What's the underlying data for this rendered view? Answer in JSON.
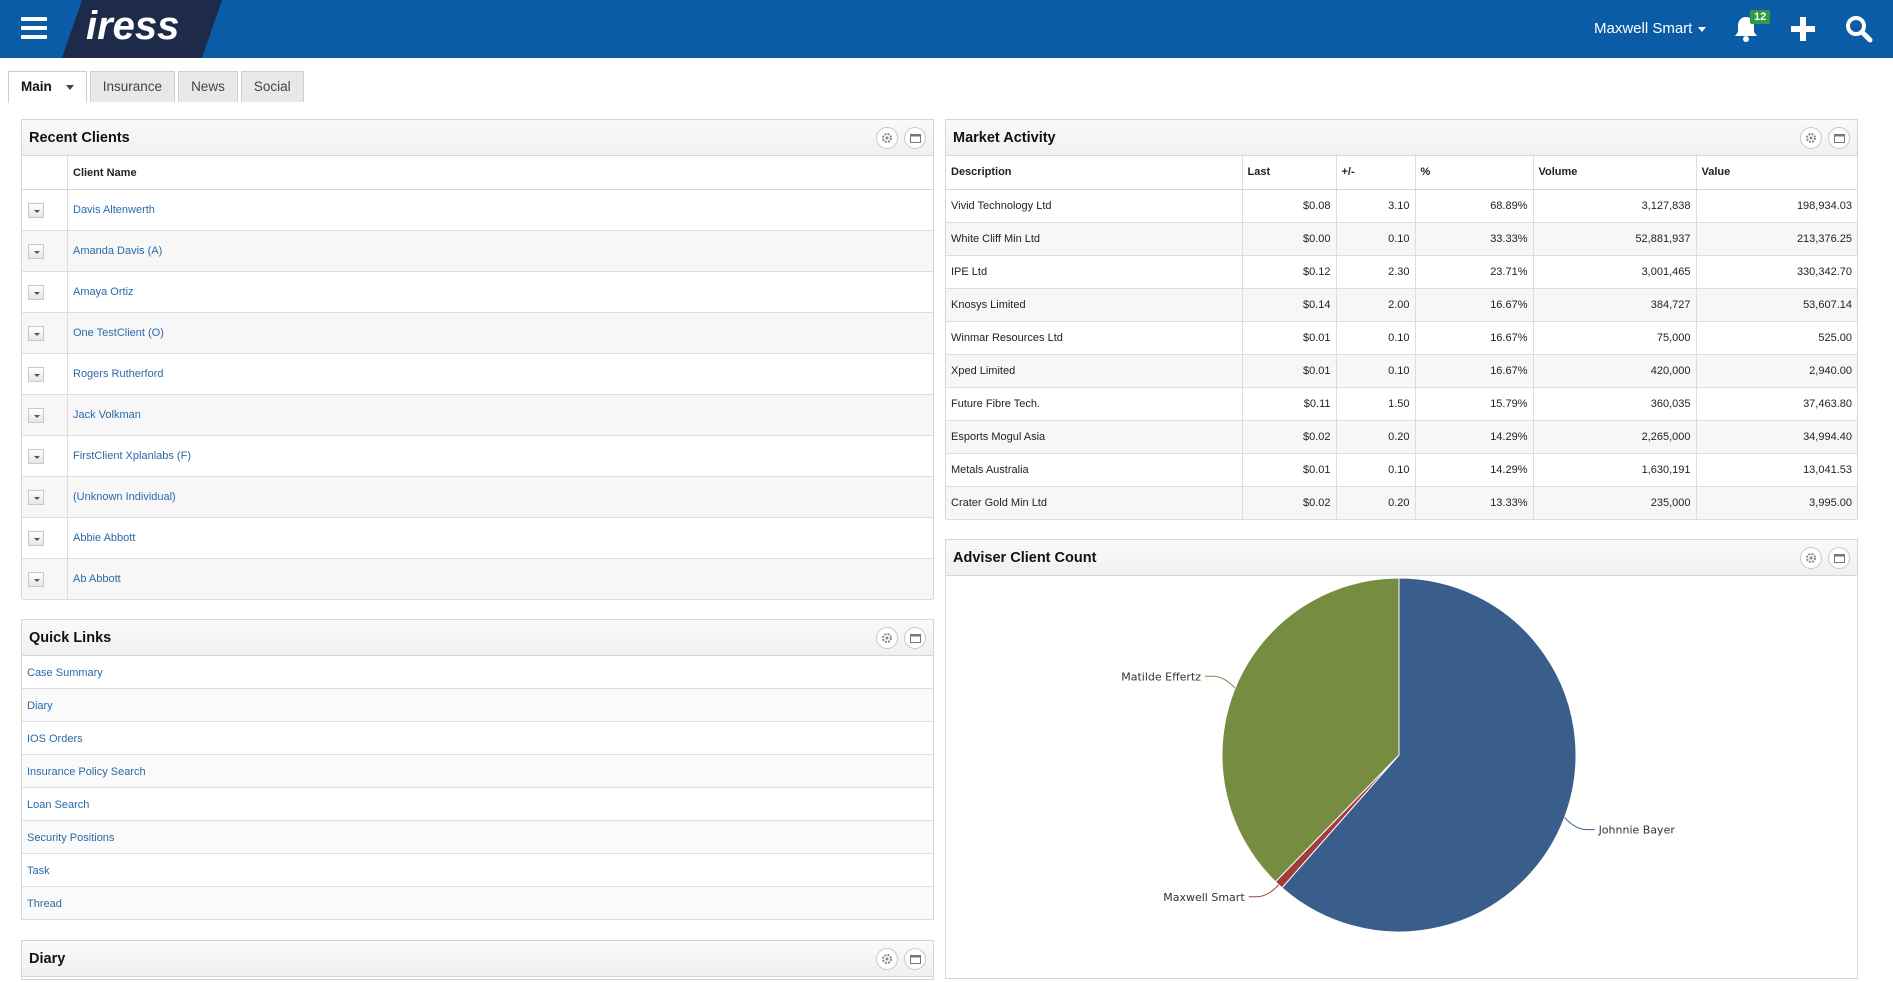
{
  "header": {
    "logo_text": "iress",
    "user_name": "Maxwell Smart",
    "notification_count": "12",
    "colors": {
      "bar": "#0a5ca6",
      "badge": "#2e9c45",
      "logo_bg": "#1d2a4a"
    }
  },
  "tabs": [
    {
      "label": "Main",
      "active": true
    },
    {
      "label": "Insurance"
    },
    {
      "label": "News"
    },
    {
      "label": "Social"
    }
  ],
  "recent_clients": {
    "title": "Recent Clients",
    "column": "Client Name",
    "rows": [
      "Davis Altenwerth",
      "Amanda Davis (A)",
      "Amaya Ortiz",
      "One TestClient (O)",
      "Rogers Rutherford",
      "Jack Volkman",
      "FirstClient Xplanlabs (F)",
      "(Unknown Individual)",
      "Abbie Abbott",
      "Ab Abbott"
    ]
  },
  "quick_links": {
    "title": "Quick Links",
    "items": [
      "Case Summary",
      "Diary",
      "IOS Orders",
      "Insurance Policy Search",
      "Loan Search",
      "Security Positions",
      "Task",
      "Thread"
    ]
  },
  "diary": {
    "title": "Diary"
  },
  "market_activity": {
    "title": "Market Activity",
    "columns": [
      "Description",
      "Last",
      "+/-",
      "%",
      "Volume",
      "Value"
    ],
    "rows": [
      [
        "Vivid Technology Ltd",
        "$0.08",
        "3.10",
        "68.89%",
        "3,127,838",
        "198,934.03"
      ],
      [
        "White Cliff Min Ltd",
        "$0.00",
        "0.10",
        "33.33%",
        "52,881,937",
        "213,376.25"
      ],
      [
        "IPE Ltd",
        "$0.12",
        "2.30",
        "23.71%",
        "3,001,465",
        "330,342.70"
      ],
      [
        "Knosys Limited",
        "$0.14",
        "2.00",
        "16.67%",
        "384,727",
        "53,607.14"
      ],
      [
        "Winmar Resources Ltd",
        "$0.01",
        "0.10",
        "16.67%",
        "75,000",
        "525.00"
      ],
      [
        "Xped Limited",
        "$0.01",
        "0.10",
        "16.67%",
        "420,000",
        "2,940.00"
      ],
      [
        "Future Fibre Tech.",
        "$0.11",
        "1.50",
        "15.79%",
        "360,035",
        "37,463.80"
      ],
      [
        "Esports Mogul Asia",
        "$0.02",
        "0.20",
        "14.29%",
        "2,265,000",
        "34,994.40"
      ],
      [
        "Metals Australia",
        "$0.01",
        "0.10",
        "14.29%",
        "1,630,191",
        "13,041.53"
      ],
      [
        "Crater Gold Min Ltd",
        "$0.02",
        "0.20",
        "13.33%",
        "235,000",
        "3,995.00"
      ]
    ]
  },
  "adviser_client_count": {
    "title": "Adviser Client Count"
  },
  "chart_data": {
    "type": "pie",
    "title": "",
    "slices": [
      {
        "label": "Johnnie Bayer",
        "value": 61.5,
        "color": "#3a5e8c"
      },
      {
        "label": "Maxwell Smart",
        "value": 0.8,
        "color": "#a23c3a"
      },
      {
        "label": "Matilde Effertz",
        "value": 37.7,
        "color": "#768c41"
      }
    ]
  }
}
